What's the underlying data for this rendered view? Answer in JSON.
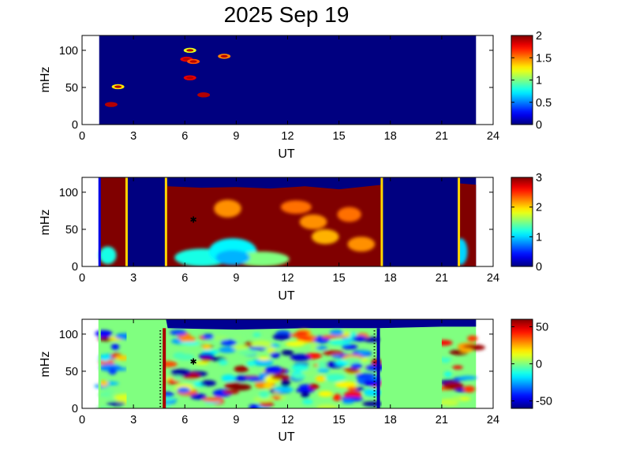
{
  "title": "2025 Sep 19",
  "chart_data": [
    {
      "type": "heatmap",
      "title": "2025 Sep 19",
      "xlabel": "UT",
      "ylabel": "mHz",
      "xlim": [
        0,
        24
      ],
      "ylim": [
        0,
        120
      ],
      "xticks": [
        "0",
        "3",
        "6",
        "9",
        "12",
        "15",
        "18",
        "21",
        "24"
      ],
      "yticks": [
        "0",
        "50",
        "100"
      ],
      "data_x_range": [
        1,
        23
      ],
      "colorbar": {
        "range": [
          0,
          2
        ],
        "ticks": [
          "0",
          "0.5",
          "1",
          "1.5",
          "2"
        ]
      },
      "colormap": "jet",
      "background_value": 0,
      "blobs": [
        {
          "x": 1.7,
          "y": 27,
          "v": 1.9
        },
        {
          "x": 2.1,
          "y": 51,
          "v": 1.3
        },
        {
          "x": 6.1,
          "y": 88,
          "v": 1.8
        },
        {
          "x": 6.5,
          "y": 85,
          "v": 1.6
        },
        {
          "x": 6.3,
          "y": 63,
          "v": 1.8
        },
        {
          "x": 6.3,
          "y": 100,
          "v": 1.2
        },
        {
          "x": 7.1,
          "y": 40,
          "v": 1.9
        },
        {
          "x": 8.3,
          "y": 92,
          "v": 1.5
        }
      ]
    },
    {
      "type": "heatmap",
      "xlabel": "UT",
      "ylabel": "mHz",
      "xlim": [
        0,
        24
      ],
      "ylim": [
        0,
        120
      ],
      "xticks": [
        "0",
        "3",
        "6",
        "9",
        "12",
        "15",
        "18",
        "21",
        "24"
      ],
      "yticks": [
        "0",
        "50",
        "100"
      ],
      "data_x_range": [
        1,
        23
      ],
      "colorbar": {
        "range": [
          0,
          3
        ],
        "ticks": [
          "0",
          "1",
          "2",
          "3"
        ]
      },
      "colormap": "jet",
      "saturated_value": 3,
      "no_data_intervals_ut": [
        [
          2.6,
          4.9
        ],
        [
          17.5,
          22.0
        ]
      ],
      "upper_boundary_mhz": [
        {
          "x": 1.0,
          "y": 120
        },
        {
          "x": 4.9,
          "y": 120
        },
        {
          "x": 5.0,
          "y": 108
        },
        {
          "x": 7.0,
          "y": 106
        },
        {
          "x": 9.0,
          "y": 107
        },
        {
          "x": 11.0,
          "y": 105
        },
        {
          "x": 13.0,
          "y": 108
        },
        {
          "x": 15.0,
          "y": 104
        },
        {
          "x": 17.5,
          "y": 110
        },
        {
          "x": 22.0,
          "y": 112
        },
        {
          "x": 23.0,
          "y": 110
        }
      ],
      "low_region": [
        {
          "x": 7.0,
          "y": 12,
          "w": 1.6,
          "h": 12,
          "v": 1.2
        },
        {
          "x": 8.8,
          "y": 20,
          "w": 1.4,
          "h": 18,
          "v": 1.1
        },
        {
          "x": 10.5,
          "y": 10,
          "w": 1.6,
          "h": 10,
          "v": 1.5
        },
        {
          "x": 13.5,
          "y": 60,
          "w": 0.8,
          "h": 10,
          "v": 2.2
        },
        {
          "x": 12.5,
          "y": 80,
          "w": 0.9,
          "h": 9,
          "v": 2.3
        },
        {
          "x": 14.2,
          "y": 40,
          "w": 0.8,
          "h": 10,
          "v": 2.1
        },
        {
          "x": 16.3,
          "y": 30,
          "w": 0.8,
          "h": 10,
          "v": 2.2
        },
        {
          "x": 8.5,
          "y": 78,
          "w": 0.8,
          "h": 12,
          "v": 2.2
        },
        {
          "x": 15.6,
          "y": 70,
          "w": 0.7,
          "h": 10,
          "v": 2.3
        },
        {
          "x": 1.5,
          "y": 15,
          "w": 0.5,
          "h": 12,
          "v": 1.2
        },
        {
          "x": 22.1,
          "y": 20,
          "w": 0.4,
          "h": 18,
          "v": 1.0
        }
      ],
      "markers": [
        {
          "x": 6.5,
          "y": 63
        }
      ]
    },
    {
      "type": "heatmap",
      "xlabel": "UT",
      "ylabel": "mHz",
      "xlim": [
        0,
        24
      ],
      "ylim": [
        0,
        120
      ],
      "xticks": [
        "0",
        "3",
        "6",
        "9",
        "12",
        "15",
        "18",
        "21",
        "24"
      ],
      "yticks": [
        "0",
        "50",
        "100"
      ],
      "data_x_range": [
        1,
        23
      ],
      "colorbar": {
        "range": [
          -60,
          60
        ],
        "ticks": [
          "50",
          "0",
          "-50"
        ]
      },
      "colormap": "jet",
      "fill_value_no_data": 0,
      "no_data_intervals_ut": [
        [
          2.6,
          4.8
        ],
        [
          17.5,
          21.0
        ]
      ],
      "upper_boundary_mhz": [
        {
          "x": 1.0,
          "y": 120
        },
        {
          "x": 4.9,
          "y": 120
        },
        {
          "x": 5.0,
          "y": 108
        },
        {
          "x": 9.0,
          "y": 106
        },
        {
          "x": 13.0,
          "y": 108
        },
        {
          "x": 17.3,
          "y": 108
        },
        {
          "x": 21.0,
          "y": 110
        },
        {
          "x": 23.0,
          "y": 110
        }
      ],
      "vertical_lines": [
        {
          "x": 4.8,
          "v": 55
        },
        {
          "x": 17.3,
          "v": -55
        }
      ],
      "markers": [
        {
          "x": 6.5,
          "y": 63
        }
      ]
    }
  ]
}
